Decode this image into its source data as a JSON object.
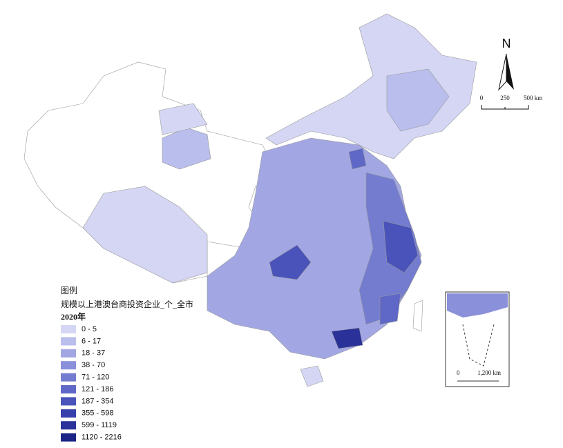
{
  "map": {
    "north": "N",
    "scale_bar": {
      "ticks": [
        "0",
        "250",
        "500 km"
      ]
    },
    "inset_scale": {
      "ticks": [
        "0",
        "1,200 km"
      ]
    },
    "legend": {
      "heading": "图例",
      "title": "规模以上港澳台商投资企业_个_全市",
      "year": "2020年",
      "items": [
        {
          "label": "0 - 5",
          "color": "#d4d6f4"
        },
        {
          "label": "6 - 17",
          "color": "#babeed"
        },
        {
          "label": "18 - 37",
          "color": "#a2a7e4"
        },
        {
          "label": "38 - 70",
          "color": "#8a91da"
        },
        {
          "label": "71 - 120",
          "color": "#747cd0"
        },
        {
          "label": "121 - 186",
          "color": "#5f68c6"
        },
        {
          "label": "187 - 354",
          "color": "#4a53ba"
        },
        {
          "label": "355 - 598",
          "color": "#3840ab"
        },
        {
          "label": "599 - 1119",
          "color": "#2a3199"
        },
        {
          "label": "1120 - 2216",
          "color": "#1c2585"
        }
      ]
    }
  }
}
